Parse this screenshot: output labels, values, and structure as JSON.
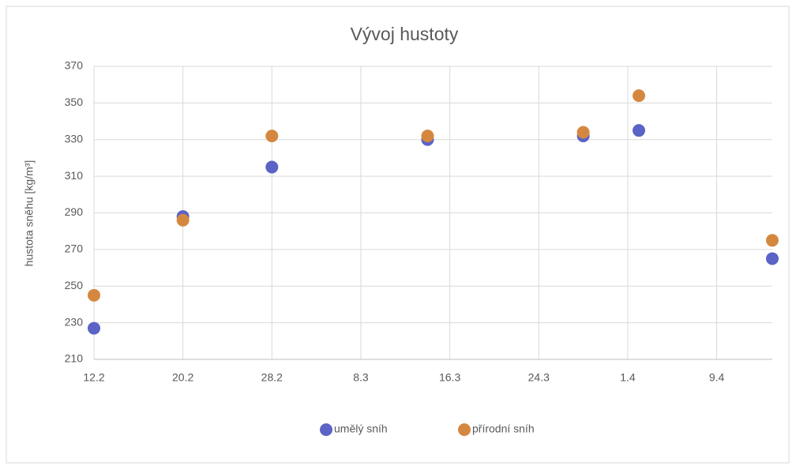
{
  "chart_data": {
    "type": "scatter",
    "title": "Vývoj hustoty",
    "ylabel": "hustota sněhu [kg/m³]",
    "xlim": [
      43,
      104
    ],
    "xticks": [
      {
        "value": 43,
        "label": "12.2"
      },
      {
        "value": 51,
        "label": "20.2"
      },
      {
        "value": 59,
        "label": "28.2"
      },
      {
        "value": 67,
        "label": "8.3"
      },
      {
        "value": 75,
        "label": "16.3"
      },
      {
        "value": 83,
        "label": "24.3"
      },
      {
        "value": 91,
        "label": "1.4"
      },
      {
        "value": 99,
        "label": "9.4"
      }
    ],
    "ylim": [
      210,
      370
    ],
    "yticks": [
      210,
      230,
      250,
      270,
      290,
      310,
      330,
      350,
      370
    ],
    "grid": true,
    "legend": "bottom",
    "x": [
      43,
      51,
      59,
      73,
      87,
      92,
      104
    ],
    "series": [
      {
        "name": "umělý sníh",
        "color": "#5b63c6",
        "values": [
          227,
          288,
          315,
          330,
          332,
          335,
          265
        ]
      },
      {
        "name": "přírodní sníh",
        "color": "#d4883f",
        "values": [
          245,
          286,
          332,
          332,
          334,
          354,
          275
        ]
      }
    ]
  }
}
